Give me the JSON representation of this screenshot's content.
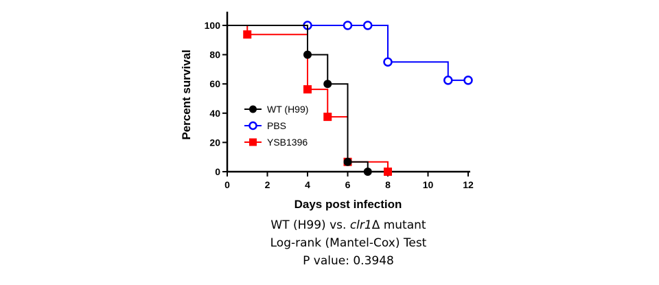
{
  "chart_data": {
    "type": "line",
    "xlabel": "Days post infection",
    "ylabel": "Percent survival",
    "xlim": [
      0,
      12
    ],
    "ylim": [
      0,
      100
    ],
    "xticks": [
      0,
      2,
      4,
      6,
      8,
      10,
      12
    ],
    "yticks": [
      0,
      20,
      40,
      60,
      80,
      100
    ],
    "grid": false,
    "legend_position": "center-left",
    "series": [
      {
        "name": "WT (H99)",
        "color": "#000000",
        "marker": "filled-circle",
        "steps": [
          [
            0,
            100
          ],
          [
            4,
            80
          ],
          [
            5,
            60
          ],
          [
            6,
            6.7
          ],
          [
            7,
            0
          ]
        ],
        "points": [
          [
            4,
            80
          ],
          [
            5,
            60
          ],
          [
            6,
            6.7
          ],
          [
            7,
            0
          ]
        ]
      },
      {
        "name": "PBS",
        "color": "#0000ff",
        "marker": "open-circle",
        "steps": [
          [
            0,
            100
          ],
          [
            8,
            75
          ],
          [
            11,
            62.5
          ],
          [
            12,
            62.5
          ]
        ],
        "points": [
          [
            4,
            100
          ],
          [
            6,
            100
          ],
          [
            7,
            100
          ],
          [
            8,
            75
          ],
          [
            11,
            62.5
          ],
          [
            12,
            62.5
          ]
        ]
      },
      {
        "name": "YSB1396",
        "color": "#ff0000",
        "marker": "filled-square",
        "steps": [
          [
            0,
            100
          ],
          [
            1,
            93.8
          ],
          [
            4,
            56.3
          ],
          [
            5,
            37.5
          ],
          [
            6,
            6.7
          ],
          [
            8,
            0
          ]
        ],
        "points": [
          [
            1,
            93.8
          ],
          [
            4,
            56.3
          ],
          [
            5,
            37.5
          ],
          [
            6,
            6.7
          ],
          [
            8,
            0
          ]
        ]
      }
    ]
  },
  "caption": {
    "line1_prefix": "WT (H99) vs. ",
    "line1_gene": "clr1",
    "line1_suffix": "Δ mutant",
    "line2": "Log-rank (Mantel-Cox) Test",
    "line3": "P value: 0.3948"
  }
}
